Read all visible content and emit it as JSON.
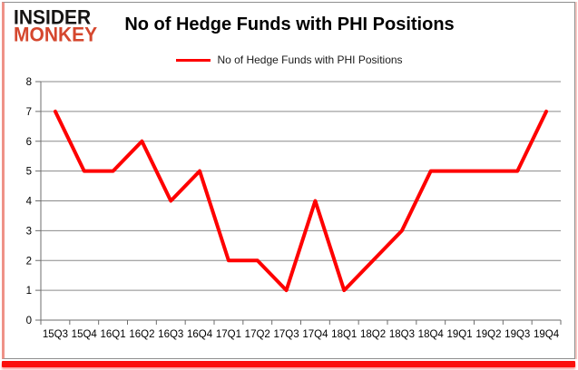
{
  "logo": {
    "line1": "INSIDER",
    "line2": "MONKEY"
  },
  "header": {
    "title": "No of Hedge Funds with PHI Positions"
  },
  "legend": {
    "label": "No of Hedge Funds with PHI Positions"
  },
  "colors": {
    "line": "#fe0000",
    "grid": "#8a8a8a",
    "axis": "#6e6e6e",
    "tick": "#6e6e6e",
    "label": "#000000",
    "logo_accent": "#d5472e",
    "frame_pink": "#ef9288",
    "frame_red": "#fb100c"
  },
  "chart_data": {
    "type": "line",
    "title": "No of Hedge Funds with PHI Positions",
    "categories": [
      "15Q3",
      "15Q4",
      "16Q1",
      "16Q2",
      "16Q3",
      "16Q4",
      "17Q1",
      "17Q2",
      "17Q3",
      "17Q4",
      "18Q1",
      "18Q2",
      "18Q3",
      "18Q4",
      "19Q1",
      "19Q2",
      "19Q3",
      "19Q4"
    ],
    "series": [
      {
        "name": "No of Hedge Funds with PHI Positions",
        "values": [
          7,
          5,
          5,
          6,
          4,
          5,
          2,
          2,
          1,
          4,
          1,
          2,
          3,
          5,
          5,
          5,
          5,
          7
        ]
      }
    ],
    "xlabel": "",
    "ylabel": "",
    "ylim": [
      0,
      8
    ],
    "ytick_step": 1,
    "grid": true,
    "legend_position": "top"
  }
}
